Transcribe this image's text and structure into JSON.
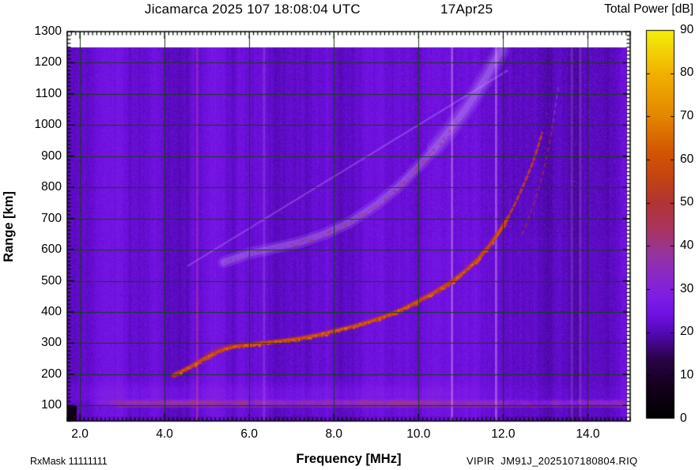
{
  "footer": {
    "rxmask": "RxMask 11111111",
    "file": "VIPIR  JM91J_2025107180804.RIQ"
  },
  "chart_data": {
    "type": "heatmap",
    "title": "Jicamarca 2025 107 18:08:04 UTC",
    "date_annotation": "17Apr25",
    "xlabel": "Frequency [MHz]",
    "ylabel": "Range [km]",
    "colorbar_label": "Total Power [dB]",
    "xlim": [
      1.7,
      15.0
    ],
    "ylim": [
      50,
      1300
    ],
    "data_ceiling_km": 1250,
    "background_power_db": 22,
    "grid_color": "#173f10",
    "xticks": {
      "values": [
        2,
        4,
        6,
        8,
        10,
        12,
        14
      ],
      "labels": [
        "2.0",
        "4.0",
        "6.0",
        "8.0",
        "10.0",
        "12.0",
        "14.0"
      ],
      "minor_step": 0.1
    },
    "yticks": {
      "values": [
        100,
        200,
        300,
        400,
        500,
        600,
        700,
        800,
        900,
        1000,
        1100,
        1200,
        1300
      ],
      "labels": [
        "100",
        "200",
        "300",
        "400",
        "500",
        "600",
        "700",
        "800",
        "900",
        "1000",
        "1100",
        "1200",
        "1300"
      ],
      "minor_step": 12.5
    },
    "colorbar": {
      "min": 0,
      "max": 90,
      "ticks": [
        0,
        10,
        20,
        30,
        40,
        50,
        60,
        70,
        80,
        90
      ],
      "labels": [
        "0",
        "10",
        "20",
        "30",
        "40",
        "50",
        "60",
        "70",
        "80",
        "90"
      ],
      "stops": [
        [
          0,
          "#000000"
        ],
        [
          8,
          "#16001f"
        ],
        [
          14,
          "#2b0349"
        ],
        [
          20,
          "#5409b6"
        ],
        [
          24,
          "#6f10e0"
        ],
        [
          28,
          "#7e1de6"
        ],
        [
          33,
          "#8a28c9"
        ],
        [
          38,
          "#9634a2"
        ],
        [
          44,
          "#aa3560"
        ],
        [
          50,
          "#b23434"
        ],
        [
          56,
          "#c44413"
        ],
        [
          62,
          "#d35703"
        ],
        [
          70,
          "#e48600"
        ],
        [
          80,
          "#f2b200"
        ],
        [
          90,
          "#f3ef0a"
        ]
      ]
    },
    "series": {
      "f_trace": [
        [
          4.2,
          197
        ],
        [
          4.45,
          213
        ],
        [
          4.7,
          232
        ],
        [
          4.95,
          252
        ],
        [
          5.2,
          270
        ],
        [
          5.45,
          283
        ],
        [
          5.7,
          291
        ],
        [
          6.0,
          296
        ],
        [
          6.4,
          302
        ],
        [
          6.8,
          308
        ],
        [
          7.2,
          316
        ],
        [
          7.6,
          326
        ],
        [
          8.0,
          339
        ],
        [
          8.4,
          352
        ],
        [
          8.8,
          368
        ],
        [
          9.2,
          386
        ],
        [
          9.6,
          408
        ],
        [
          10.0,
          436
        ],
        [
          10.4,
          466
        ],
        [
          10.8,
          500
        ],
        [
          11.1,
          532
        ],
        [
          11.4,
          570
        ],
        [
          11.7,
          618
        ],
        [
          11.95,
          668
        ],
        [
          12.1,
          700
        ]
      ],
      "f_trace_dashed": [
        [
          12.1,
          700
        ],
        [
          12.25,
          740
        ],
        [
          12.4,
          782
        ],
        [
          12.55,
          830
        ],
        [
          12.7,
          880
        ],
        [
          12.82,
          930
        ],
        [
          12.92,
          975
        ]
      ],
      "x_trace_dashed": [
        [
          12.45,
          650
        ],
        [
          12.65,
          720
        ],
        [
          12.85,
          800
        ],
        [
          13.0,
          880
        ],
        [
          13.1,
          950
        ],
        [
          13.18,
          1010
        ]
      ],
      "x_trace_faint": [
        [
          13.18,
          1010
        ],
        [
          13.3,
          1120
        ]
      ],
      "f_trace_bend_double": [
        [
          4.95,
          265
        ],
        [
          5.25,
          284
        ],
        [
          5.55,
          296
        ],
        [
          5.85,
          303
        ]
      ],
      "second_hop": [
        [
          5.4,
          560
        ],
        [
          6.0,
          588
        ],
        [
          6.6,
          606
        ],
        [
          7.2,
          624
        ],
        [
          7.8,
          652
        ],
        [
          8.4,
          690
        ],
        [
          9.0,
          744
        ],
        [
          9.6,
          812
        ],
        [
          10.0,
          868
        ],
        [
          10.4,
          928
        ],
        [
          10.8,
          995
        ],
        [
          11.2,
          1068
        ],
        [
          11.6,
          1155
        ],
        [
          11.95,
          1240
        ]
      ],
      "second_hop_core_range": [
        6.9,
        10.9
      ],
      "oblique_echo": [
        [
          4.55,
          548
        ],
        [
          12.1,
          1175
        ]
      ],
      "e_layer": {
        "f_start": 2.35,
        "center_km": 108,
        "half_width_km": 9,
        "thin_line_km": 95
      },
      "diffuse_band_km": [
        115,
        190
      ],
      "interference_lines": [
        {
          "f": 4.77,
          "strength": "strong-pink"
        },
        {
          "f": 6.35,
          "strength": "faint"
        },
        {
          "f": 10.79,
          "strength": "medium"
        },
        {
          "f": 11.83,
          "strength": "medium"
        },
        {
          "f": 13.62,
          "strength": "faint"
        },
        {
          "f": 13.82,
          "strength": "faint"
        }
      ]
    }
  }
}
